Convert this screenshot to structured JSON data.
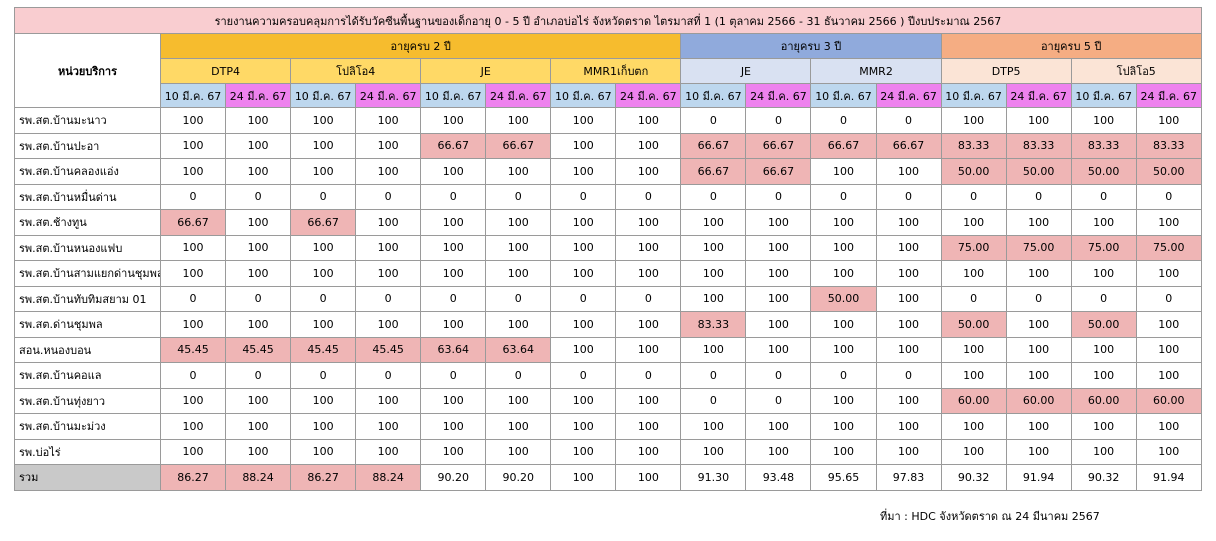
{
  "title": "รายงานความครอบคลุมการได้รับวัคซีนพื้นฐานของเด็กอายุ 0 - 5 ปี อำเภอบ่อไร่ จังหวัดตราด ไตรมาสที่ 1 (1 ตุลาคม 2566 - 31 ธันวาคม 2566 ) ปีงบประมาณ 2567",
  "unit_header": "หน่วยบริการ",
  "age_groups": [
    {
      "label": "อายุครบ 2 ปี",
      "span": 8,
      "tone": "g2"
    },
    {
      "label": "อายุครบ 3 ปี",
      "span": 4,
      "tone": "g3"
    },
    {
      "label": "อายุครบ 5 ปี",
      "span": 4,
      "tone": "g5"
    }
  ],
  "vaccines": [
    {
      "label": "DTP4",
      "tone": "v2"
    },
    {
      "label": "โปลิโอ4",
      "tone": "v2"
    },
    {
      "label": "JE",
      "tone": "v2"
    },
    {
      "label": "MMR1เก็บตก",
      "tone": "v2"
    },
    {
      "label": "JE",
      "tone": "v3"
    },
    {
      "label": "MMR2",
      "tone": "v3"
    },
    {
      "label": "DTP5",
      "tone": "v5"
    },
    {
      "label": "โปลิโอ5",
      "tone": "v5"
    }
  ],
  "dates": [
    "10 มี.ค. 67",
    "24 มี.ค. 67"
  ],
  "rows": [
    {
      "name": "รพ.สต.บ้านมะนาว",
      "values": [
        "100",
        "100",
        "100",
        "100",
        "100",
        "100",
        "100",
        "100",
        "0",
        "0",
        "0",
        "0",
        "100",
        "100",
        "100",
        "100"
      ]
    },
    {
      "name": "รพ.สต.บ้านปะอา",
      "values": [
        "100",
        "100",
        "100",
        "100",
        "66.67",
        "66.67",
        "100",
        "100",
        "66.67",
        "66.67",
        "66.67",
        "66.67",
        "83.33",
        "83.33",
        "83.33",
        "83.33"
      ]
    },
    {
      "name": "รพ.สต.บ้านคลองแอ่ง",
      "values": [
        "100",
        "100",
        "100",
        "100",
        "100",
        "100",
        "100",
        "100",
        "66.67",
        "66.67",
        "100",
        "100",
        "50.00",
        "50.00",
        "50.00",
        "50.00"
      ]
    },
    {
      "name": "รพ.สต.บ้านหมื่นด่าน",
      "values": [
        "0",
        "0",
        "0",
        "0",
        "0",
        "0",
        "0",
        "0",
        "0",
        "0",
        "0",
        "0",
        "0",
        "0",
        "0",
        "0"
      ]
    },
    {
      "name": "รพ.สต.ช้างทูน",
      "values": [
        "66.67",
        "100",
        "66.67",
        "100",
        "100",
        "100",
        "100",
        "100",
        "100",
        "100",
        "100",
        "100",
        "100",
        "100",
        "100",
        "100"
      ]
    },
    {
      "name": "รพ.สต.บ้านหนองแฟบ",
      "values": [
        "100",
        "100",
        "100",
        "100",
        "100",
        "100",
        "100",
        "100",
        "100",
        "100",
        "100",
        "100",
        "75.00",
        "75.00",
        "75.00",
        "75.00"
      ]
    },
    {
      "name": "รพ.สต.บ้านสามแยกด่านชุมพล",
      "values": [
        "100",
        "100",
        "100",
        "100",
        "100",
        "100",
        "100",
        "100",
        "100",
        "100",
        "100",
        "100",
        "100",
        "100",
        "100",
        "100"
      ]
    },
    {
      "name": "รพ.สต.บ้านทับทิมสยาม 01",
      "values": [
        "0",
        "0",
        "0",
        "0",
        "0",
        "0",
        "0",
        "0",
        "100",
        "100",
        "50.00",
        "100",
        "0",
        "0",
        "0",
        "0"
      ]
    },
    {
      "name": "รพ.สต.ด่านชุมพล",
      "values": [
        "100",
        "100",
        "100",
        "100",
        "100",
        "100",
        "100",
        "100",
        "83.33",
        "100",
        "100",
        "100",
        "50.00",
        "100",
        "50.00",
        "100"
      ]
    },
    {
      "name": "สอน.หนองบอน",
      "values": [
        "45.45",
        "45.45",
        "45.45",
        "45.45",
        "63.64",
        "63.64",
        "100",
        "100",
        "100",
        "100",
        "100",
        "100",
        "100",
        "100",
        "100",
        "100"
      ]
    },
    {
      "name": "รพ.สต.บ้านคอแล",
      "values": [
        "0",
        "0",
        "0",
        "0",
        "0",
        "0",
        "0",
        "0",
        "0",
        "0",
        "0",
        "0",
        "100",
        "100",
        "100",
        "100"
      ]
    },
    {
      "name": "รพ.สต.บ้านทุ่งยาว",
      "values": [
        "100",
        "100",
        "100",
        "100",
        "100",
        "100",
        "100",
        "100",
        "0",
        "0",
        "100",
        "100",
        "60.00",
        "60.00",
        "60.00",
        "60.00"
      ]
    },
    {
      "name": "รพ.สต.บ้านมะม่วง",
      "values": [
        "100",
        "100",
        "100",
        "100",
        "100",
        "100",
        "100",
        "100",
        "100",
        "100",
        "100",
        "100",
        "100",
        "100",
        "100",
        "100"
      ]
    },
    {
      "name": "รพ.บ่อไร่",
      "values": [
        "100",
        "100",
        "100",
        "100",
        "100",
        "100",
        "100",
        "100",
        "100",
        "100",
        "100",
        "100",
        "100",
        "100",
        "100",
        "100"
      ]
    }
  ],
  "total": {
    "name": "รวม",
    "values": [
      "86.27",
      "88.24",
      "86.27",
      "88.24",
      "90.20",
      "90.20",
      "100",
      "100",
      "91.30",
      "93.48",
      "95.65",
      "97.83",
      "90.32",
      "91.94",
      "90.32",
      "91.94"
    ]
  },
  "highlight_color": "#efb5b5",
  "source": "ที่มา : HDC จังหวัดตราด ณ 24 มีนาคม 2567"
}
